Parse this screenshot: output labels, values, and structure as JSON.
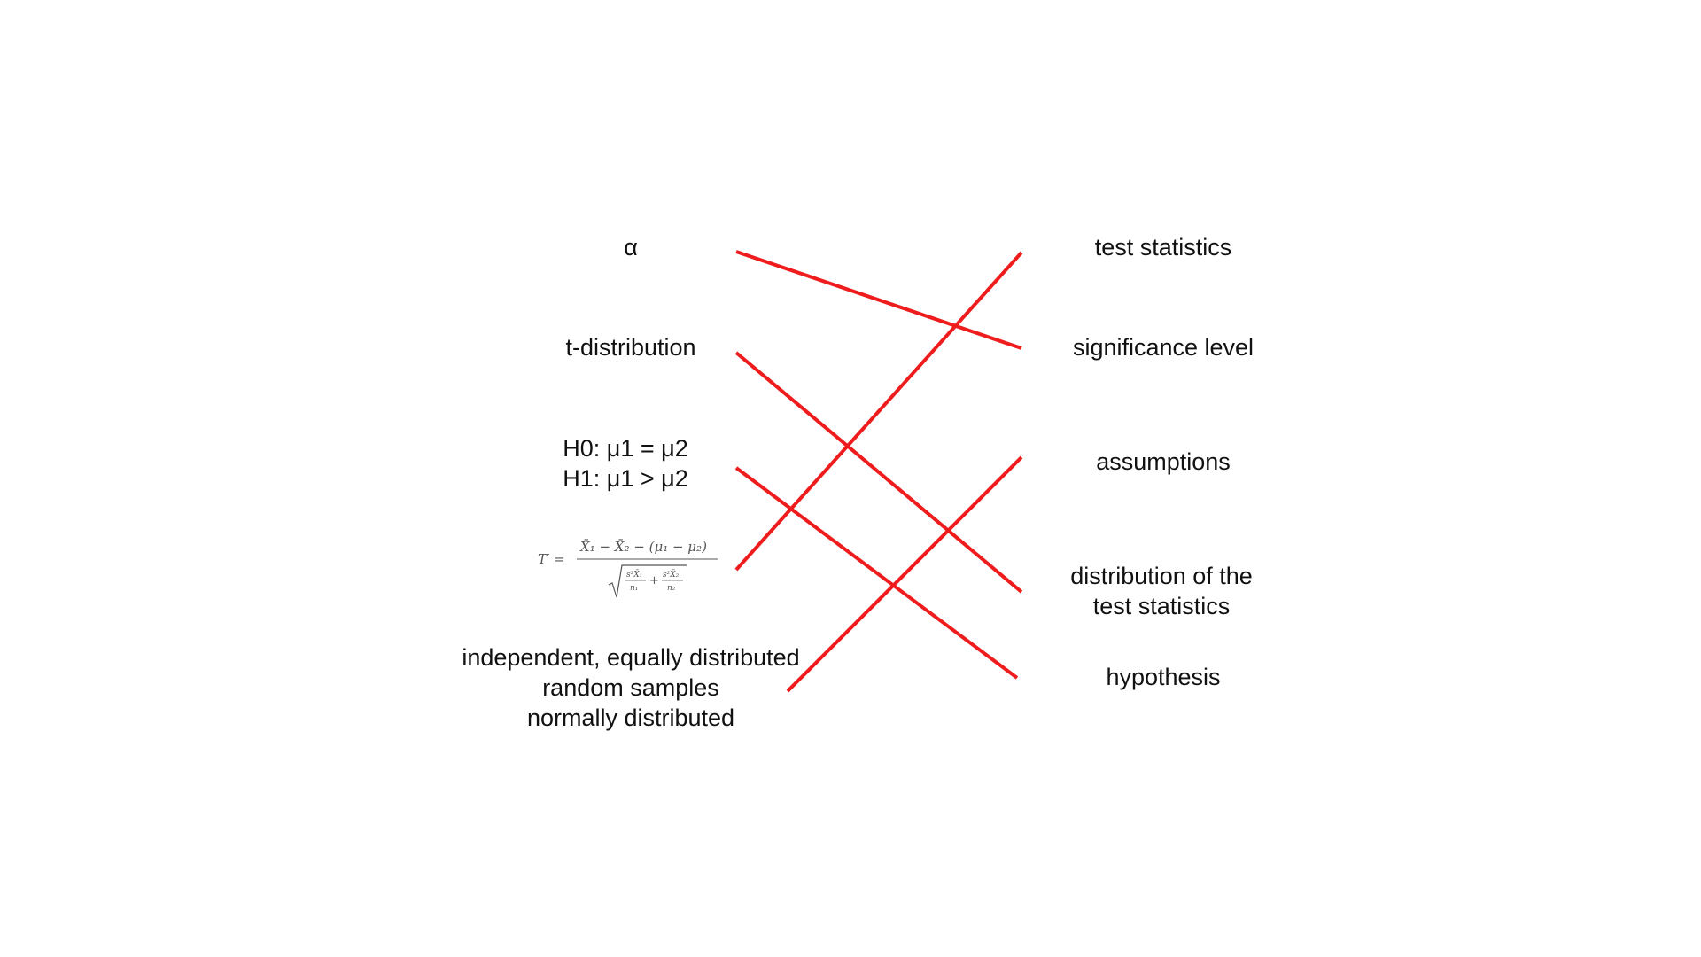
{
  "left_items": [
    {
      "id": "alpha",
      "lines": [
        "α"
      ]
    },
    {
      "id": "t-distribution",
      "lines": [
        "t-distribution"
      ]
    },
    {
      "id": "hypotheses",
      "lines": [
        "H0: μ1 = μ2",
        "H1: μ1 > μ2"
      ]
    },
    {
      "id": "formula",
      "lines": [],
      "formula": {
        "lhs": "T′ =",
        "numerator": "X̄₁ − X̄₂ − (μ₁ − μ₂)",
        "denominator_left_top": "s²X̄₁",
        "denominator_left_bottom": "n₁",
        "plus": "+",
        "denominator_right_top": "s²X̄₂",
        "denominator_right_bottom": "n₂"
      }
    },
    {
      "id": "samples",
      "lines": [
        "independent, equally distributed",
        "random samples",
        "normally distributed"
      ]
    }
  ],
  "right_items": [
    {
      "id": "test-statistics",
      "lines": [
        "test statistics"
      ]
    },
    {
      "id": "significance-level",
      "lines": [
        "significance level"
      ]
    },
    {
      "id": "assumptions",
      "lines": [
        "assumptions"
      ]
    },
    {
      "id": "distribution",
      "lines": [
        "distribution of the",
        "test statistics"
      ]
    },
    {
      "id": "hypothesis",
      "lines": [
        "hypothesis"
      ]
    }
  ],
  "connections": [
    {
      "from": "alpha",
      "to": "significance-level"
    },
    {
      "from": "t-distribution",
      "to": "distribution"
    },
    {
      "from": "hypotheses",
      "to": "hypothesis"
    },
    {
      "from": "formula",
      "to": "test-statistics"
    },
    {
      "from": "samples",
      "to": "assumptions"
    }
  ],
  "colors": {
    "line": "#ee1c1c",
    "text": "#111111"
  }
}
